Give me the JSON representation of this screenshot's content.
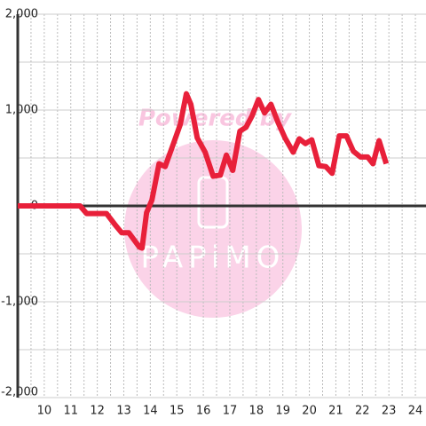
{
  "chart_data": {
    "type": "line",
    "watermark": [
      "Powered by",
      "PAPiMO"
    ],
    "x": [
      9.0,
      11.35,
      11.6,
      12.35,
      12.68,
      12.92,
      13.19,
      13.59,
      13.69,
      13.86,
      14.06,
      14.33,
      14.56,
      14.9,
      15.13,
      15.36,
      15.53,
      15.77,
      16.07,
      16.37,
      16.64,
      16.87,
      17.11,
      17.38,
      17.61,
      17.84,
      18.08,
      18.31,
      18.55,
      18.82,
      19.08,
      19.39,
      19.62,
      19.85,
      20.09,
      20.36,
      20.62,
      20.86,
      21.13,
      21.4,
      21.66,
      21.93,
      22.2,
      22.4,
      22.63,
      22.9
    ],
    "series": [
      {
        "color": "#e8203a",
        "values": [
          0,
          0,
          -80,
          -80,
          -200,
          -280,
          -280,
          -430,
          -440,
          -70,
          60,
          440,
          410,
          670,
          850,
          1170,
          1060,
          710,
          560,
          310,
          320,
          530,
          370,
          780,
          820,
          940,
          1110,
          970,
          1060,
          870,
          710,
          560,
          700,
          650,
          690,
          420,
          410,
          340,
          730,
          730,
          570,
          510,
          510,
          440,
          680,
          440
        ]
      }
    ],
    "xlim": [
      9,
      24.4
    ],
    "xticks": [
      10,
      11,
      12,
      13,
      14,
      15,
      16,
      17,
      18,
      19,
      20,
      21,
      22,
      23,
      24
    ],
    "ylim": [
      -2000,
      2000
    ],
    "yticks": [
      {
        "value": -2000,
        "label": "-2,000"
      },
      {
        "value": -1000,
        "label": "-1,000"
      },
      0,
      {
        "value": 1000,
        "label": "1,000"
      },
      {
        "value": 2000,
        "label": "2,000"
      }
    ],
    "grid": true
  }
}
